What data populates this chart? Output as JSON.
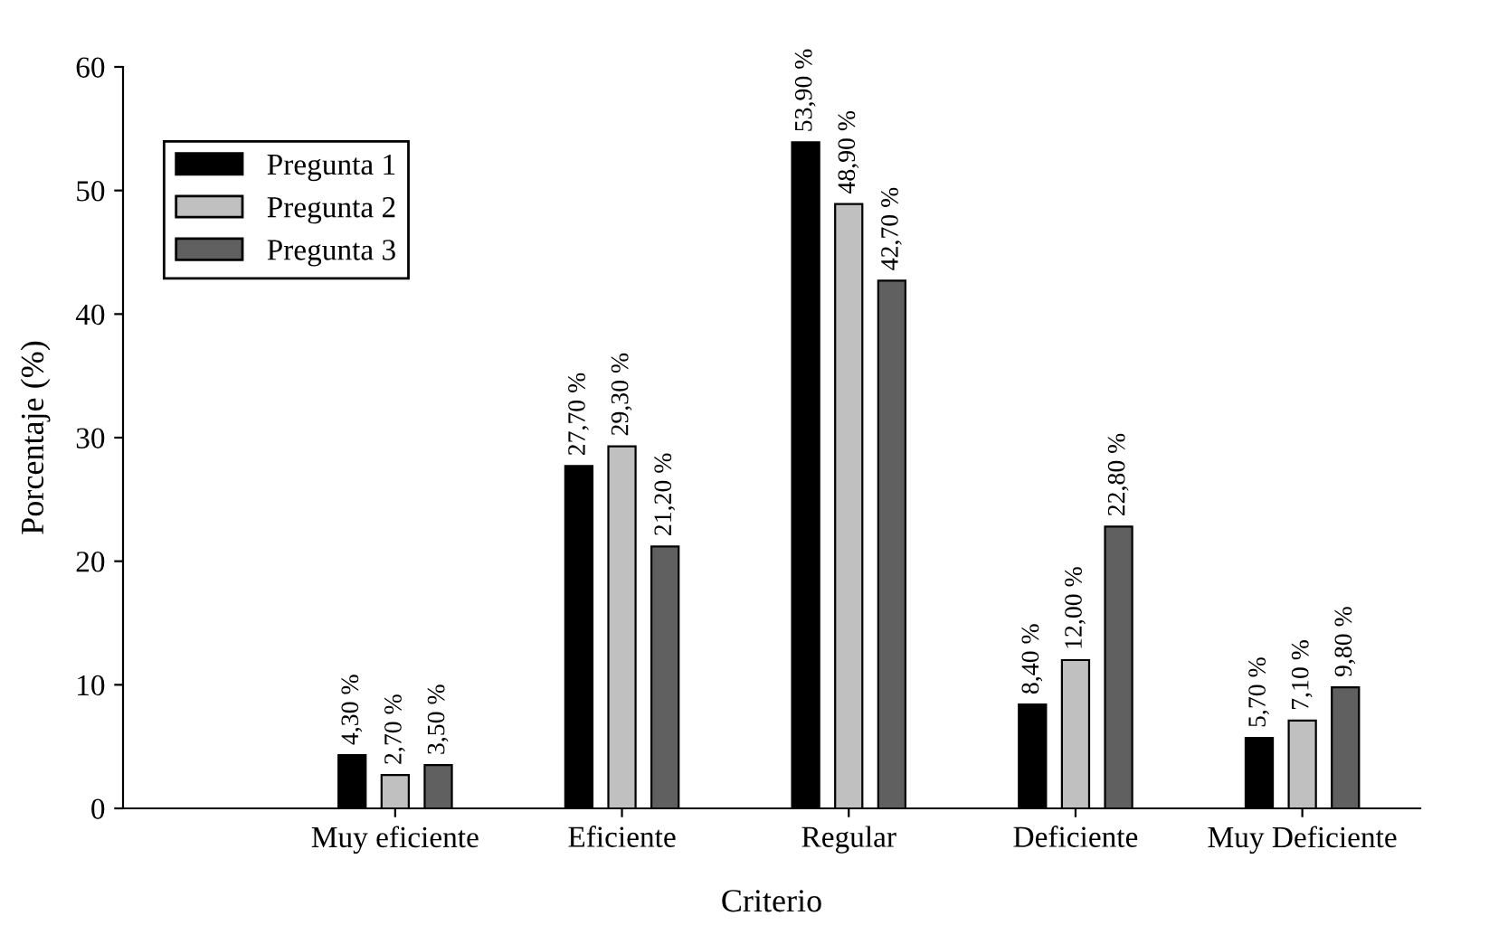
{
  "chart_data": {
    "type": "bar",
    "xlabel": "Criterio",
    "ylabel": "Porcentaje (%)",
    "categories": [
      "Muy eficiente",
      "Eficiente",
      "Regular",
      "Deficiente",
      "Muy Deficiente"
    ],
    "series": [
      {
        "name": "Pregunta 1",
        "color": "#000000",
        "values": [
          4.3,
          27.7,
          53.9,
          8.4,
          5.7
        ],
        "value_labels": [
          "4,30 %",
          "27,70 %",
          "53,90 %",
          "8,40 %",
          "5,70 %"
        ]
      },
      {
        "name": "Pregunta 2",
        "color": "#c0c0c0",
        "values": [
          2.7,
          29.3,
          48.9,
          12.0,
          7.1
        ],
        "value_labels": [
          "2,70 %",
          "29,30 %",
          "48,90 %",
          "12,00 %",
          "7,10 %"
        ]
      },
      {
        "name": "Pregunta 3",
        "color": "#606060",
        "values": [
          3.5,
          21.2,
          42.7,
          22.8,
          9.8
        ],
        "value_labels": [
          "3,50 %",
          "21,20 %",
          "42,70 %",
          "22,80 %",
          "9,80 %"
        ]
      }
    ],
    "ylim": [
      0,
      60
    ],
    "yticks": [
      0,
      10,
      20,
      30,
      40,
      50,
      60
    ],
    "grid": false,
    "legend": "top left"
  }
}
